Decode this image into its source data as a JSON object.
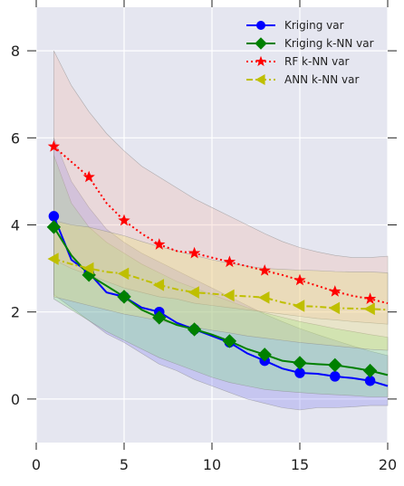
{
  "chart_data": {
    "type": "line",
    "title": "",
    "xlabel": "",
    "ylabel": "",
    "xlim": [
      0,
      20
    ],
    "ylim": [
      -1,
      9
    ],
    "xticks": [
      0,
      5,
      10,
      15,
      20
    ],
    "yticks": [
      0,
      2,
      4,
      6,
      8
    ],
    "grid": true,
    "legend_position": "top-right",
    "background": "#e5e6f0",
    "series": [
      {
        "name": "Kriging var",
        "color": "#0000ff",
        "linestyle": "solid",
        "marker": "circle",
        "x": [
          1,
          2,
          3,
          4,
          5,
          6,
          7,
          8,
          9,
          10,
          11,
          12,
          13,
          14,
          15,
          16,
          17,
          18,
          19,
          20
        ],
        "y": [
          4.2,
          3.2,
          2.9,
          2.45,
          2.35,
          2.1,
          2.0,
          1.75,
          1.6,
          1.45,
          1.3,
          1.05,
          0.88,
          0.7,
          0.6,
          0.58,
          0.52,
          0.48,
          0.42,
          0.3
        ],
        "marker_x": [
          1,
          3,
          5,
          7,
          9,
          11,
          13,
          15,
          17,
          19
        ],
        "band_lower": [
          2.4,
          2.1,
          1.8,
          1.5,
          1.3,
          1.05,
          0.8,
          0.65,
          0.45,
          0.3,
          0.15,
          0.0,
          -0.1,
          -0.2,
          -0.25,
          -0.2,
          -0.2,
          -0.18,
          -0.15,
          -0.15
        ],
        "band_upper": [
          6.0,
          5.0,
          4.4,
          3.9,
          3.6,
          3.35,
          3.15,
          2.95,
          2.75,
          2.55,
          2.35,
          2.15,
          1.95,
          1.78,
          1.62,
          1.48,
          1.35,
          1.22,
          1.1,
          1.0
        ],
        "band_color": "#7f7ff2"
      },
      {
        "name": "Kriging k-NN var",
        "color": "#008000",
        "linestyle": "solid",
        "marker": "diamond",
        "x": [
          1,
          2,
          3,
          4,
          5,
          6,
          7,
          8,
          9,
          10,
          11,
          12,
          13,
          14,
          15,
          16,
          17,
          18,
          19,
          20
        ],
        "y": [
          3.95,
          3.3,
          2.85,
          2.6,
          2.35,
          2.05,
          1.87,
          1.7,
          1.6,
          1.48,
          1.33,
          1.15,
          1.02,
          0.88,
          0.83,
          0.8,
          0.78,
          0.72,
          0.65,
          0.55
        ],
        "marker_x": [
          1,
          3,
          5,
          7,
          9,
          11,
          13,
          15,
          17,
          19
        ],
        "band_lower": [
          2.3,
          2.05,
          1.8,
          1.55,
          1.35,
          1.15,
          0.95,
          0.8,
          0.65,
          0.5,
          0.38,
          0.3,
          0.22,
          0.18,
          0.15,
          0.12,
          0.1,
          0.08,
          0.05,
          0.05
        ],
        "band_upper": [
          5.6,
          4.5,
          3.95,
          3.6,
          3.35,
          3.1,
          2.9,
          2.7,
          2.55,
          2.4,
          2.25,
          2.1,
          1.98,
          1.88,
          1.78,
          1.7,
          1.62,
          1.55,
          1.48,
          1.42
        ],
        "band_color": "#7fe07f"
      },
      {
        "name": "RF k-NN var",
        "color": "#ff0000",
        "linestyle": "dotted",
        "marker": "star",
        "x": [
          1,
          2,
          3,
          4,
          5,
          6,
          7,
          8,
          9,
          10,
          11,
          12,
          13,
          14,
          15,
          16,
          17,
          18,
          19,
          20
        ],
        "y": [
          5.8,
          5.45,
          5.1,
          4.5,
          4.1,
          3.8,
          3.55,
          3.4,
          3.35,
          3.25,
          3.15,
          3.05,
          2.95,
          2.85,
          2.73,
          2.6,
          2.47,
          2.37,
          2.3,
          2.2
        ],
        "marker_x": [
          1,
          3,
          5,
          7,
          9,
          11,
          13,
          15,
          17,
          19
        ],
        "band_lower": [
          3.2,
          3.0,
          2.85,
          2.7,
          2.55,
          2.45,
          2.35,
          2.3,
          2.2,
          2.15,
          2.1,
          2.05,
          2.0,
          1.95,
          1.9,
          1.85,
          1.82,
          1.78,
          1.75,
          1.72
        ],
        "band_upper": [
          8.0,
          7.2,
          6.6,
          6.1,
          5.7,
          5.35,
          5.1,
          4.85,
          4.6,
          4.4,
          4.2,
          4.0,
          3.8,
          3.62,
          3.48,
          3.38,
          3.3,
          3.25,
          3.25,
          3.28
        ],
        "band_color": "#f2b8a8"
      },
      {
        "name": "ANN k-NN var",
        "color": "#bfbf00",
        "linestyle": "dashdot",
        "marker": "triangle-left",
        "x": [
          1,
          2,
          3,
          4,
          5,
          6,
          7,
          8,
          9,
          10,
          11,
          12,
          13,
          14,
          15,
          16,
          17,
          18,
          19,
          20
        ],
        "y": [
          3.22,
          3.1,
          3.0,
          2.92,
          2.88,
          2.75,
          2.62,
          2.52,
          2.45,
          2.42,
          2.38,
          2.36,
          2.33,
          2.22,
          2.14,
          2.12,
          2.09,
          2.08,
          2.07,
          2.05
        ],
        "marker_x": [
          1,
          3,
          5,
          7,
          9,
          11,
          13,
          15,
          17,
          19
        ],
        "band_lower": [
          2.35,
          2.25,
          2.15,
          2.05,
          1.95,
          1.88,
          1.8,
          1.72,
          1.65,
          1.58,
          1.52,
          1.45,
          1.4,
          1.35,
          1.3,
          1.26,
          1.22,
          1.18,
          1.14,
          1.12
        ],
        "band_upper": [
          4.1,
          4.0,
          3.95,
          3.85,
          3.75,
          3.62,
          3.5,
          3.4,
          3.3,
          3.2,
          3.12,
          3.05,
          3.0,
          2.98,
          2.96,
          2.95,
          2.93,
          2.92,
          2.92,
          2.9
        ],
        "band_color": "#f0e070"
      }
    ]
  }
}
